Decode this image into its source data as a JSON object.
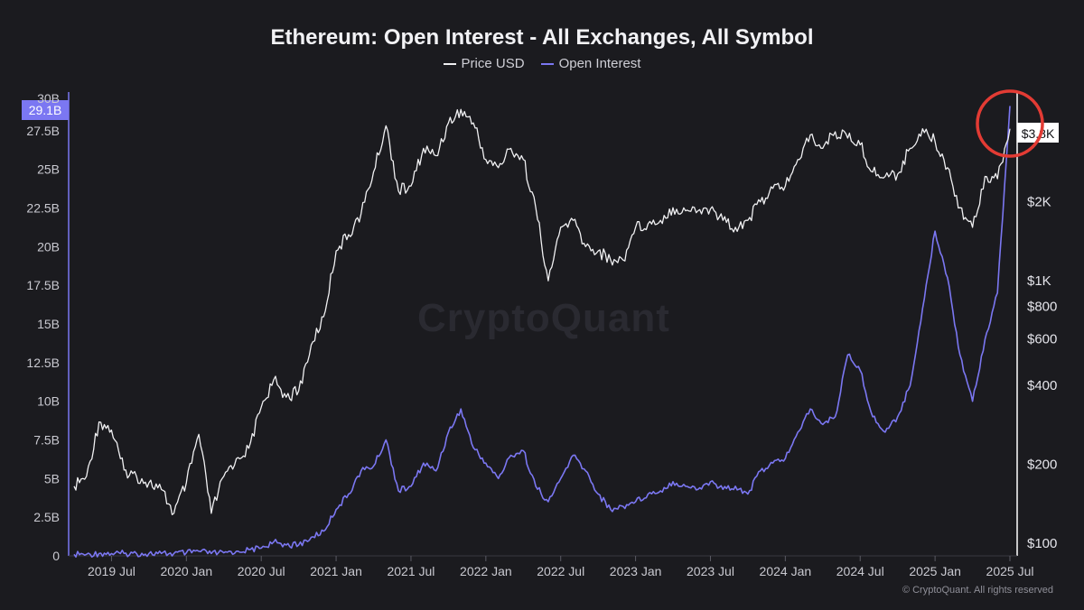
{
  "title": "Ethereum: Open Interest - All Exchanges, All Symbol",
  "watermark": "CryptoQuant",
  "copyright": "© CryptoQuant. All rights reserved",
  "colors": {
    "background": "#1b1b1f",
    "price_line": "#f0f0f2",
    "oi_line": "#7b77f2",
    "highlight_circle": "#e33b34",
    "left_badge_bg": "#7b77f2",
    "right_badge_bg": "#ffffff"
  },
  "chart_data": {
    "type": "line",
    "title": "Ethereum: Open Interest - All Exchanges, All Symbol",
    "legend": [
      "Price USD",
      "Open Interest"
    ],
    "legend_placement": "top-center",
    "grid": false,
    "x_ticks": [
      "2019 Jul",
      "2020 Jan",
      "2020 Jul",
      "2021 Jan",
      "2021 Jul",
      "2022 Jan",
      "2022 Jul",
      "2023 Jan",
      "2023 Jul",
      "2024 Jan",
      "2024 Jul",
      "2025 Jan",
      "2025 Jul"
    ],
    "x_range": [
      "2019-04",
      "2025-07"
    ],
    "left_axis": {
      "name": "Open Interest",
      "ticks": [
        "0",
        "2.5B",
        "5B",
        "7.5B",
        "10B",
        "12.5B",
        "15B",
        "17.5B",
        "20B",
        "22.5B",
        "25B",
        "27.5B"
      ],
      "range": [
        0,
        30
      ],
      "unit": "B USD",
      "current_value_label": "29.1B",
      "partial_top_label": "30B"
    },
    "right_axis": {
      "name": "Price USD",
      "scale": "log",
      "ticks": [
        "$100",
        "$200",
        "$400",
        "$600",
        "$800",
        "$1K",
        "$2K"
      ],
      "tick_values": [
        100,
        200,
        400,
        600,
        800,
        1000,
        2000
      ],
      "range": [
        100,
        5000
      ],
      "current_value_label": "$3.8K"
    },
    "series": [
      {
        "name": "Price USD",
        "axis": "right",
        "x": [
          "2019-04",
          "2019-05",
          "2019-06",
          "2019-07",
          "2019-08",
          "2019-09",
          "2019-10",
          "2019-11",
          "2019-12",
          "2020-01",
          "2020-02",
          "2020-03",
          "2020-04",
          "2020-05",
          "2020-06",
          "2020-07",
          "2020-08",
          "2020-09",
          "2020-10",
          "2020-11",
          "2020-12",
          "2021-01",
          "2021-02",
          "2021-03",
          "2021-04",
          "2021-05",
          "2021-06",
          "2021-07",
          "2021-08",
          "2021-09",
          "2021-10",
          "2021-11",
          "2021-12",
          "2022-01",
          "2022-02",
          "2022-03",
          "2022-04",
          "2022-05",
          "2022-06",
          "2022-07",
          "2022-08",
          "2022-09",
          "2022-10",
          "2022-11",
          "2022-12",
          "2023-01",
          "2023-02",
          "2023-03",
          "2023-04",
          "2023-05",
          "2023-06",
          "2023-07",
          "2023-08",
          "2023-09",
          "2023-10",
          "2023-11",
          "2023-12",
          "2024-01",
          "2024-02",
          "2024-03",
          "2024-04",
          "2024-05",
          "2024-06",
          "2024-07",
          "2024-08",
          "2024-09",
          "2024-10",
          "2024-11",
          "2024-12",
          "2025-01",
          "2025-02",
          "2025-03",
          "2025-04",
          "2025-05",
          "2025-06",
          "2025-07"
        ],
        "y": [
          165,
          180,
          290,
          270,
          190,
          180,
          170,
          160,
          130,
          170,
          260,
          130,
          180,
          210,
          230,
          330,
          420,
          360,
          380,
          570,
          730,
          1300,
          1500,
          1800,
          2600,
          3900,
          2200,
          2300,
          3200,
          3000,
          4000,
          4500,
          4000,
          2900,
          2700,
          3200,
          2900,
          1900,
          1000,
          1600,
          1700,
          1350,
          1300,
          1200,
          1200,
          1600,
          1650,
          1700,
          1900,
          1850,
          1850,
          1880,
          1700,
          1600,
          1700,
          2000,
          2250,
          2300,
          2900,
          3600,
          3200,
          3700,
          3500,
          3300,
          2600,
          2500,
          2550,
          3200,
          3800,
          3400,
          2700,
          1900,
          1600,
          2500,
          2450,
          3800
        ]
      },
      {
        "name": "Open Interest",
        "axis": "left",
        "x": [
          "2019-04",
          "2019-05",
          "2019-06",
          "2019-07",
          "2019-08",
          "2019-09",
          "2019-10",
          "2019-11",
          "2019-12",
          "2020-01",
          "2020-02",
          "2020-03",
          "2020-04",
          "2020-05",
          "2020-06",
          "2020-07",
          "2020-08",
          "2020-09",
          "2020-10",
          "2020-11",
          "2020-12",
          "2021-01",
          "2021-02",
          "2021-03",
          "2021-04",
          "2021-05",
          "2021-06",
          "2021-07",
          "2021-08",
          "2021-09",
          "2021-10",
          "2021-11",
          "2021-12",
          "2022-01",
          "2022-02",
          "2022-03",
          "2022-04",
          "2022-05",
          "2022-06",
          "2022-07",
          "2022-08",
          "2022-09",
          "2022-10",
          "2022-11",
          "2022-12",
          "2023-01",
          "2023-02",
          "2023-03",
          "2023-04",
          "2023-05",
          "2023-06",
          "2023-07",
          "2023-08",
          "2023-09",
          "2023-10",
          "2023-11",
          "2023-12",
          "2024-01",
          "2024-02",
          "2024-03",
          "2024-04",
          "2024-05",
          "2024-06",
          "2024-07",
          "2024-08",
          "2024-09",
          "2024-10",
          "2024-11",
          "2024-12",
          "2025-01",
          "2025-02",
          "2025-03",
          "2025-04",
          "2025-05",
          "2025-06",
          "2025-07"
        ],
        "y": [
          0.1,
          0.1,
          0.15,
          0.15,
          0.15,
          0.15,
          0.15,
          0.15,
          0.15,
          0.2,
          0.3,
          0.15,
          0.2,
          0.3,
          0.4,
          0.5,
          0.9,
          0.7,
          0.7,
          1.2,
          1.6,
          3.0,
          4.0,
          5.5,
          5.8,
          7.5,
          4.2,
          4.5,
          6.0,
          5.5,
          8.0,
          9.5,
          7.0,
          6.0,
          5.0,
          6.5,
          6.8,
          4.5,
          3.5,
          5.0,
          6.5,
          5.5,
          4.0,
          3.0,
          3.2,
          3.5,
          4.0,
          4.2,
          4.8,
          4.5,
          4.3,
          4.8,
          4.3,
          4.5,
          4.0,
          5.5,
          6.0,
          6.3,
          8.0,
          9.5,
          8.5,
          9.0,
          13.0,
          12.0,
          9.0,
          8.0,
          9.0,
          11.0,
          16.0,
          21.0,
          18.0,
          13.0,
          10.0,
          14.0,
          17.0,
          29.1
        ]
      }
    ]
  }
}
